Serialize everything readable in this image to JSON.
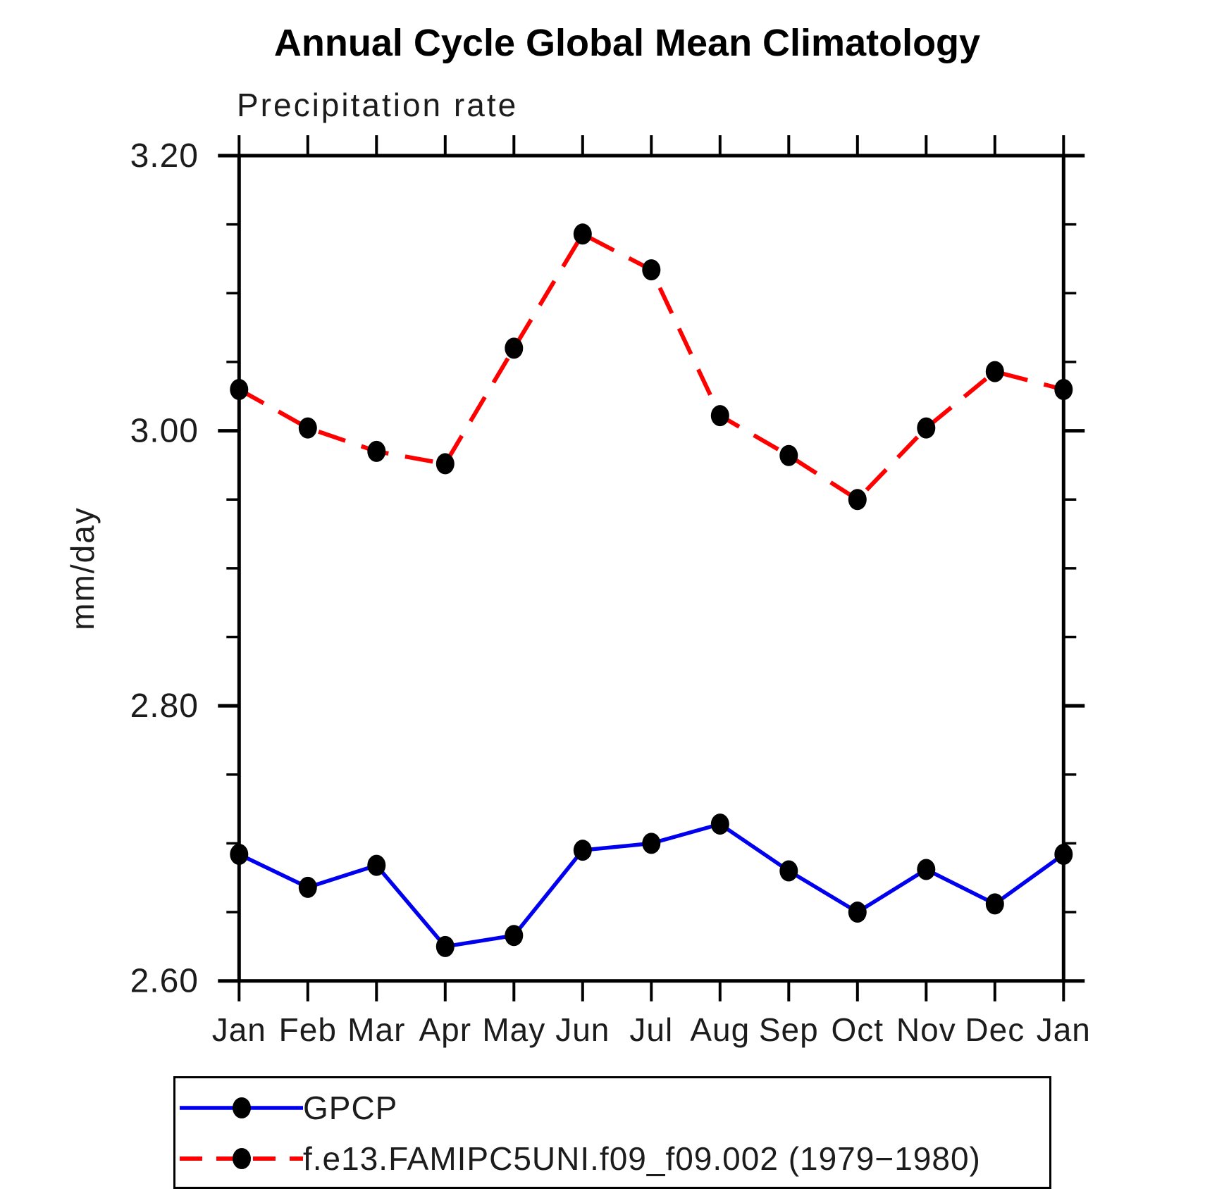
{
  "title": "Annual Cycle Global Mean Climatology",
  "subtitle": "Precipitation rate",
  "ylabel": "mm/day",
  "chart_data": {
    "type": "line",
    "categories": [
      "Jan",
      "Feb",
      "Mar",
      "Apr",
      "May",
      "Jun",
      "Jul",
      "Aug",
      "Sep",
      "Oct",
      "Nov",
      "Dec",
      "Jan"
    ],
    "series": [
      {
        "name": "GPCP",
        "color": "#0000ee",
        "line_style": "solid",
        "marker": "filled-circle",
        "marker_color": "#000000",
        "values": [
          2.692,
          2.668,
          2.684,
          2.625,
          2.633,
          2.695,
          2.7,
          2.714,
          2.68,
          2.65,
          2.681,
          2.656,
          2.692
        ]
      },
      {
        "name": "f.e13.FAMIPC5UNI.f09_f09.002 (1979−1980)",
        "color": "#ff0000",
        "line_style": "dashed",
        "marker": "filled-circle",
        "marker_color": "#000000",
        "values": [
          3.03,
          3.002,
          2.985,
          2.976,
          3.06,
          3.143,
          3.117,
          3.011,
          2.982,
          2.95,
          3.002,
          3.043,
          3.03
        ]
      }
    ],
    "xlabel": "",
    "ylabel": "mm/day",
    "ylim": [
      2.6,
      3.2
    ],
    "ytick_major_values": [
      2.6,
      2.8,
      3.0,
      3.2
    ],
    "ytick_labels": [
      "2.60",
      "2.80",
      "3.00",
      "3.20"
    ],
    "ytick_minor_step": 0.05,
    "grid": false,
    "frame": "box-with-outward-ticks",
    "legend_position": "bottom-left"
  },
  "legend": {
    "items": [
      {
        "label": "GPCP"
      },
      {
        "label": "f.e13.FAMIPC5UNI.f09_f09.002 (1979−1980)"
      }
    ]
  }
}
